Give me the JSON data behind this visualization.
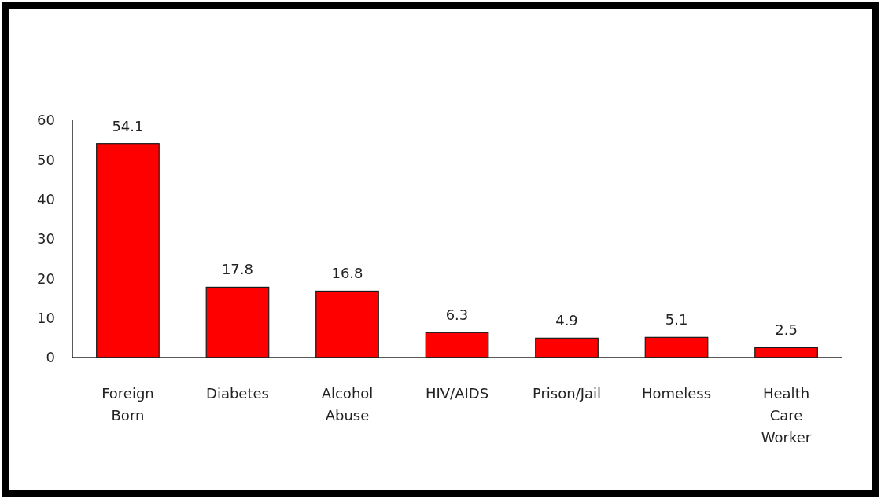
{
  "chart_data": {
    "type": "bar",
    "categories": [
      "Foreign Born",
      "Diabetes",
      "Alcohol Abuse",
      "HIV/AIDS",
      "Prison/Jail",
      "Homeless",
      "Health Care Worker"
    ],
    "values": [
      54.1,
      17.8,
      16.8,
      6.3,
      4.9,
      5.1,
      2.5
    ],
    "color": "#ff0000",
    "ylim": [
      0,
      60
    ],
    "yticks": [
      0,
      10,
      20,
      30,
      40,
      50,
      60
    ],
    "data_labels": true,
    "grid": false
  }
}
